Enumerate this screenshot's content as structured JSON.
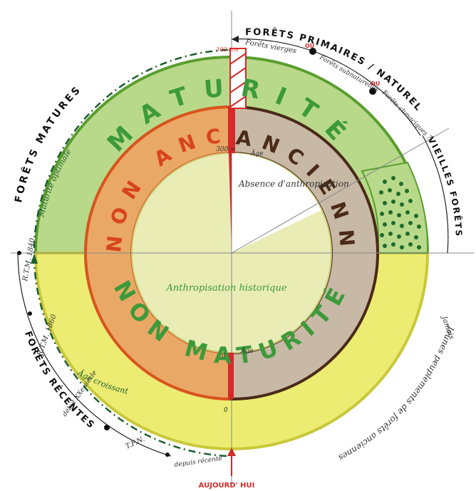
{
  "colors": {
    "maturite_green": "#b9d98a",
    "maturite_green_edge": "#5a9e2f",
    "nonmaturite_yellow": "#ecec72",
    "nonmaturite_edge": "#c8c83a",
    "non_anciennete_orange": "#eaa866",
    "orange_edge": "#d9541d",
    "anciennete_brown": "#c8b9a6",
    "brown_edge": "#4a2a18",
    "center_yellow": "#e9ecb5",
    "red": "#d42a2a",
    "dark_green_dash": "#1e5e2e",
    "dots": "#1f6a2a",
    "text_green": "#3d9a3a",
    "text_red_orange": "#d7441c",
    "text_brown": "#4a2a18",
    "text_olive": "#6b8a1e"
  },
  "outer_labels": {
    "top_right_title": "FORÊTS PRIMAIRES / NATURELLES",
    "forets_vierges": "Forêts vierges",
    "ou_1": "OU",
    "forets_subnaturelles": "Forêts subnaturelles",
    "ou_2": "OU",
    "forets_climaciques": "Forêts climaciques ?",
    "vieilles_forets": "VIEILLES FORÊTS",
    "forets_matures": "FORÊTS MATURES",
    "forets_recentes": "FORÊTS RÉCENTES",
    "rtm_1840": "R.T.M. 1840",
    "rtm_1860": "R.T.M. 1860",
    "debut_xxe": "début XXe siècle",
    "tfn": "T.F.N.",
    "depuis_recente": "depuis récente",
    "aujourd_hui": "AUJOURD' HUI",
    "jamais": "Jamais",
    "jeunes_peuplements": "Jeunes peuplements de forêts anciennes"
  },
  "ring_words": {
    "maturite": "MATURITÉ",
    "non_maturite": "NON MATURITÉ",
    "non_anciennete": "NON ANCIENNETÉ",
    "anciennete": "ANCIENNETÉ"
  },
  "inner_labels": {
    "absence": "Absence d'anthropisation",
    "anthropisation": "Anthropisation historique",
    "maturite_optimale": "Maturité optimale",
    "age_croissant": "Âge croissant",
    "age_top": "Âge",
    "age_bottom": "Âge",
    "infinity_top": "300 ∞",
    "zero_bottom": "0",
    "ans_marker": "300 ans",
    "zero_marker": "0"
  }
}
